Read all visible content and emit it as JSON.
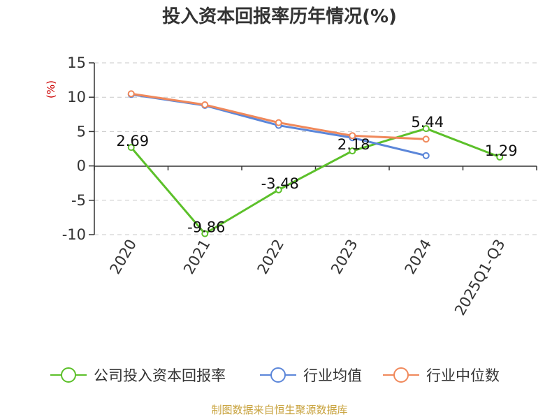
{
  "chart_data": {
    "type": "line",
    "title": "投入资本回报率历年情况(%)",
    "ylabel": "(%)",
    "xlabel": "",
    "categories": [
      "2020",
      "2021",
      "2022",
      "2023",
      "2024",
      "2025Q1-Q3"
    ],
    "ylim": [
      -10,
      15
    ],
    "yticks": [
      15,
      10,
      5,
      0,
      -5,
      -10
    ],
    "grid": "horizontal dashed",
    "legend_position": "bottom",
    "series": [
      {
        "name": "公司投入资本回报率",
        "color": "#5cc02a",
        "values": [
          2.69,
          -9.86,
          -3.48,
          2.18,
          5.44,
          1.29
        ],
        "labels": [
          "2.69",
          "-9.86",
          "-3.48",
          "2.18",
          "5.44",
          "1.29"
        ]
      },
      {
        "name": "行业均值",
        "color": "#5b86d9",
        "values": [
          10.4,
          8.8,
          5.9,
          4.1,
          1.5,
          null
        ]
      },
      {
        "name": "行业中位数",
        "color": "#f0885a",
        "values": [
          10.5,
          8.9,
          6.3,
          4.4,
          3.9,
          null
        ]
      }
    ]
  },
  "footer": {
    "source": "制图数据来自恒生聚源数据库"
  }
}
